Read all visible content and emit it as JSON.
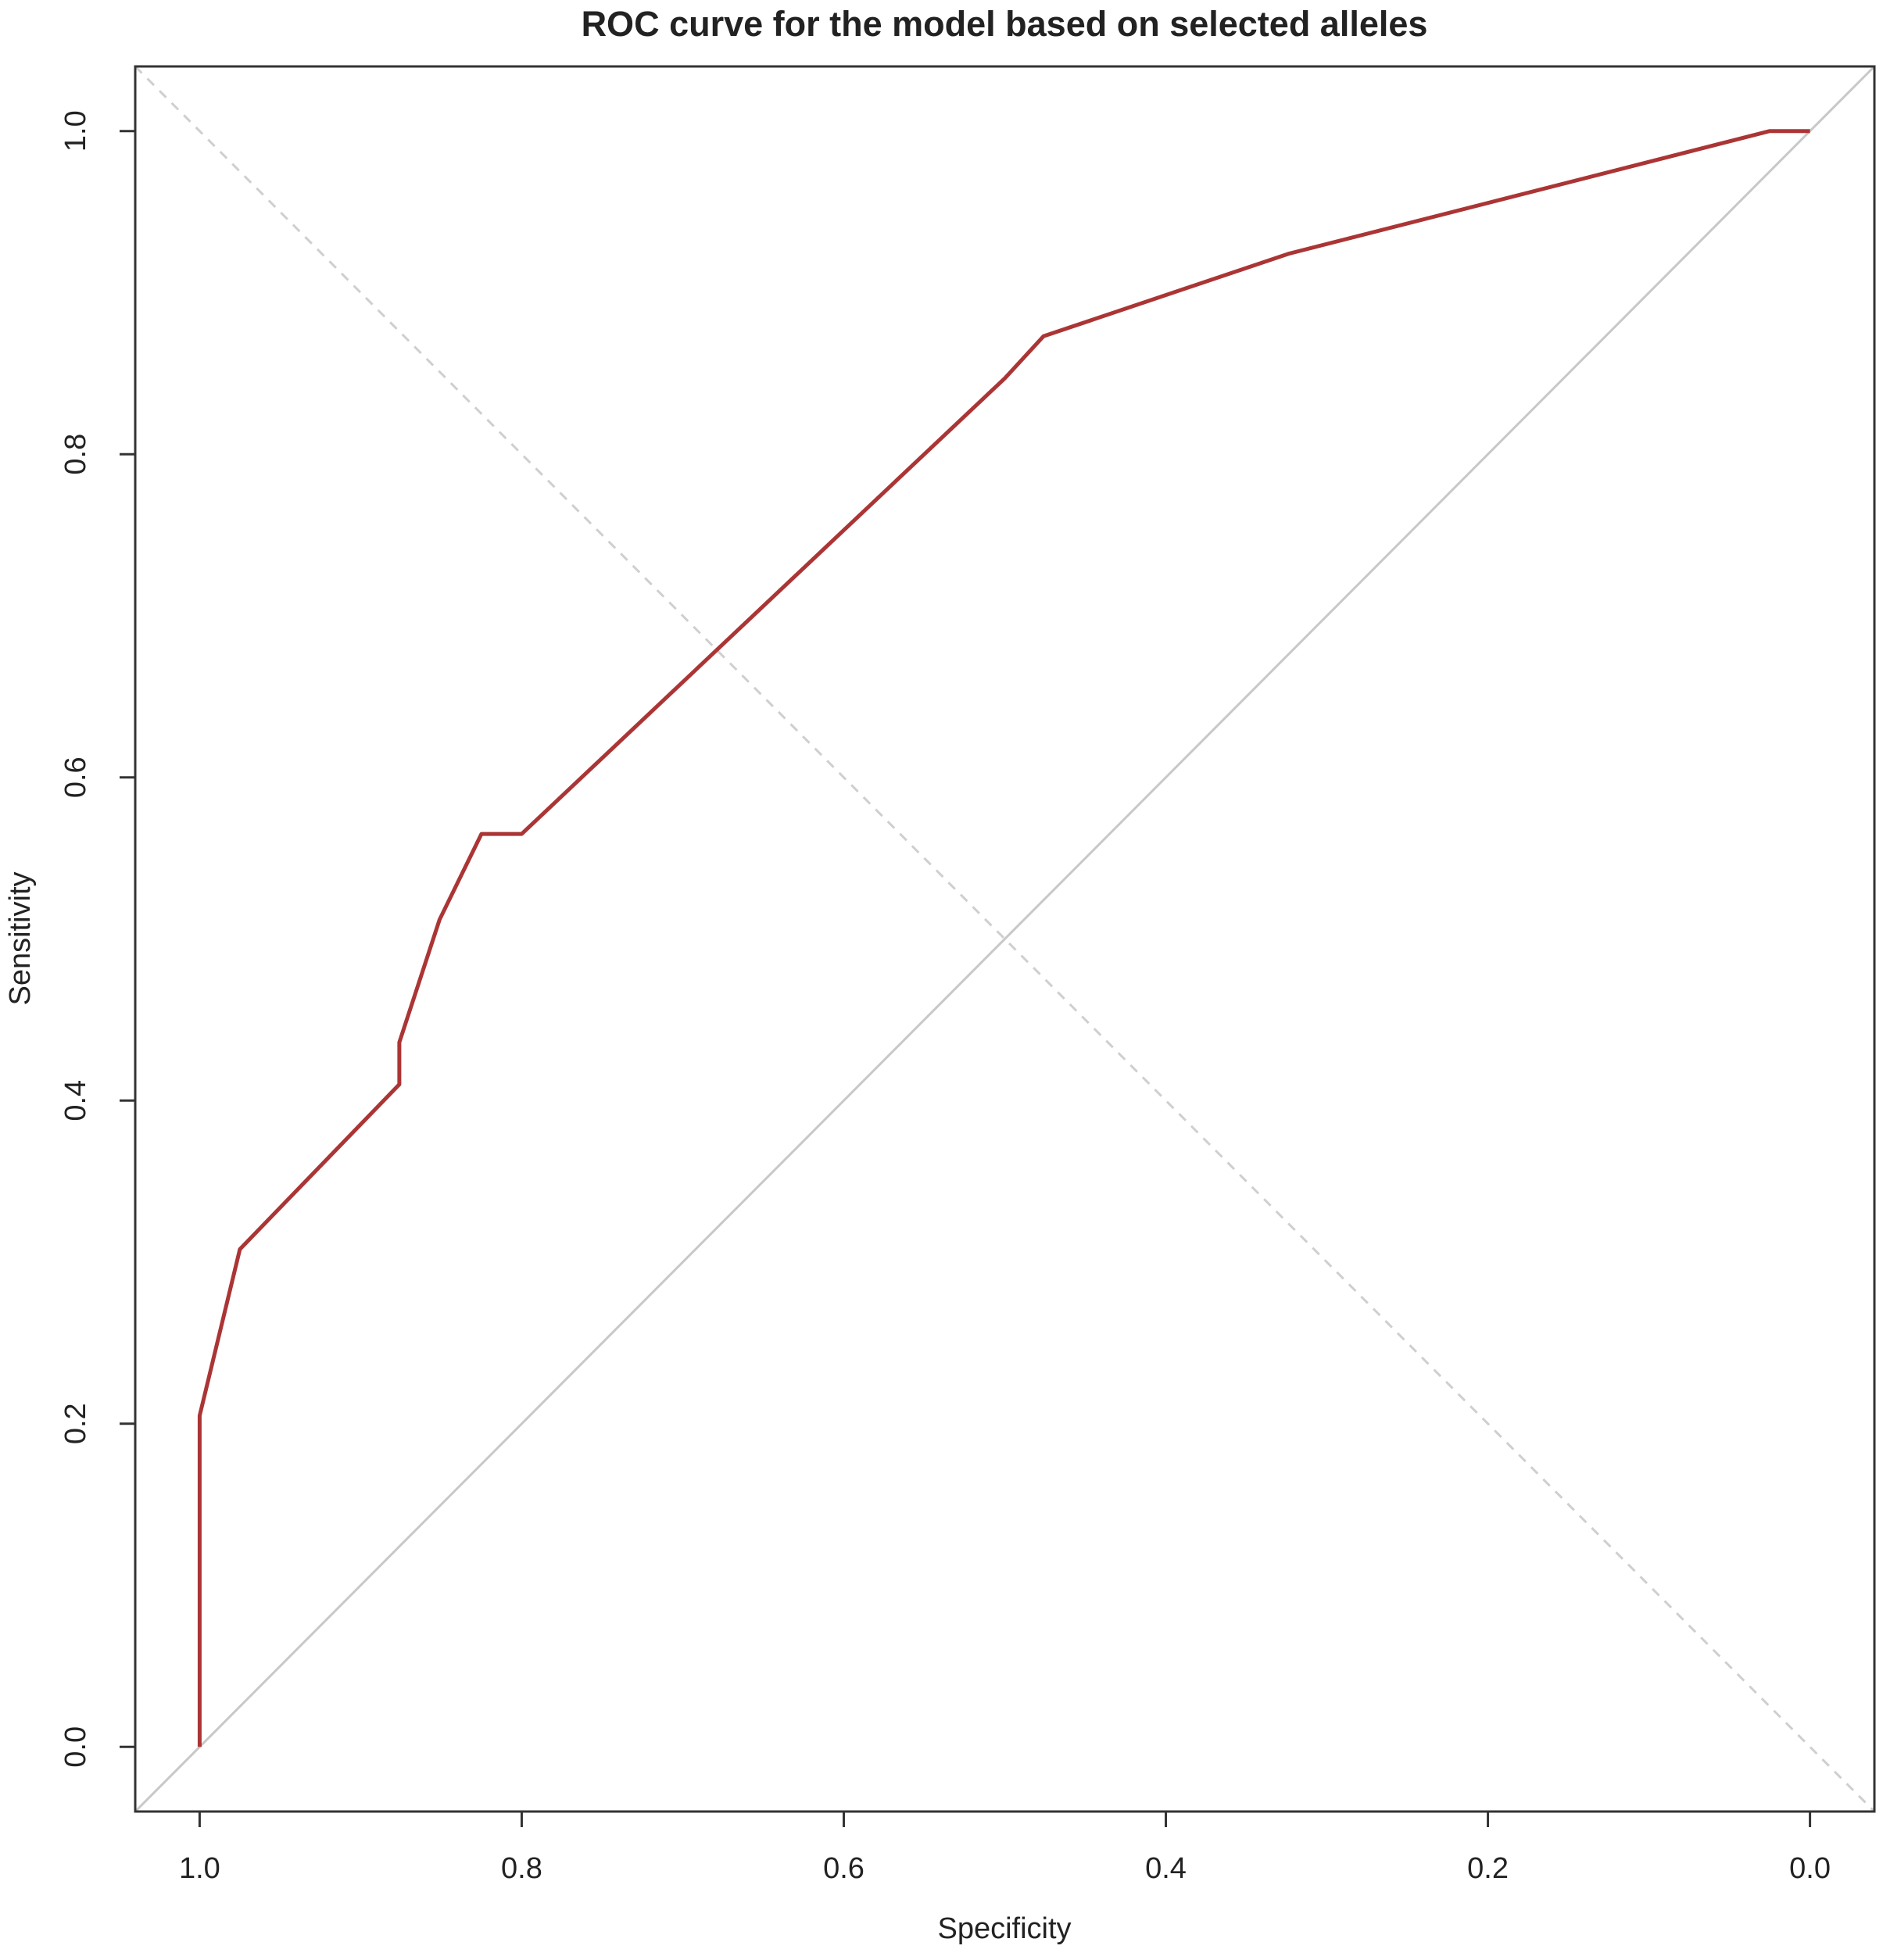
{
  "chart_data": {
    "type": "line",
    "title": "ROC curve for the model based on selected alleles",
    "x_label": "Specificity",
    "y_label": "Sensitivity",
    "x": [
      1,
      1,
      0.975,
      0.876,
      0.876,
      0.851,
      0.825,
      0.8,
      0.5,
      0.476,
      0.324,
      0.025,
      0
    ],
    "series": [
      {
        "name": "ROC",
        "color": "#ab3535",
        "values": [
          0,
          0.205,
          0.308,
          0.41,
          0.436,
          0.512,
          0.565,
          0.565,
          0.847,
          0.873,
          0.924,
          1,
          1
        ]
      }
    ],
    "xlim": [
      1.04,
      -0.04
    ],
    "ylim": [
      -0.04,
      1.04
    ],
    "xticks": [
      {
        "value": 1,
        "label": "1.0"
      },
      0.8,
      0.6,
      0.4,
      0.2,
      {
        "value": 0,
        "label": "0.0"
      }
    ],
    "yticks": [
      {
        "value": 0,
        "label": "0.0"
      },
      0.2,
      0.4,
      0.6,
      0.8,
      {
        "value": 1,
        "label": "1.0"
      }
    ],
    "grid": false
  }
}
